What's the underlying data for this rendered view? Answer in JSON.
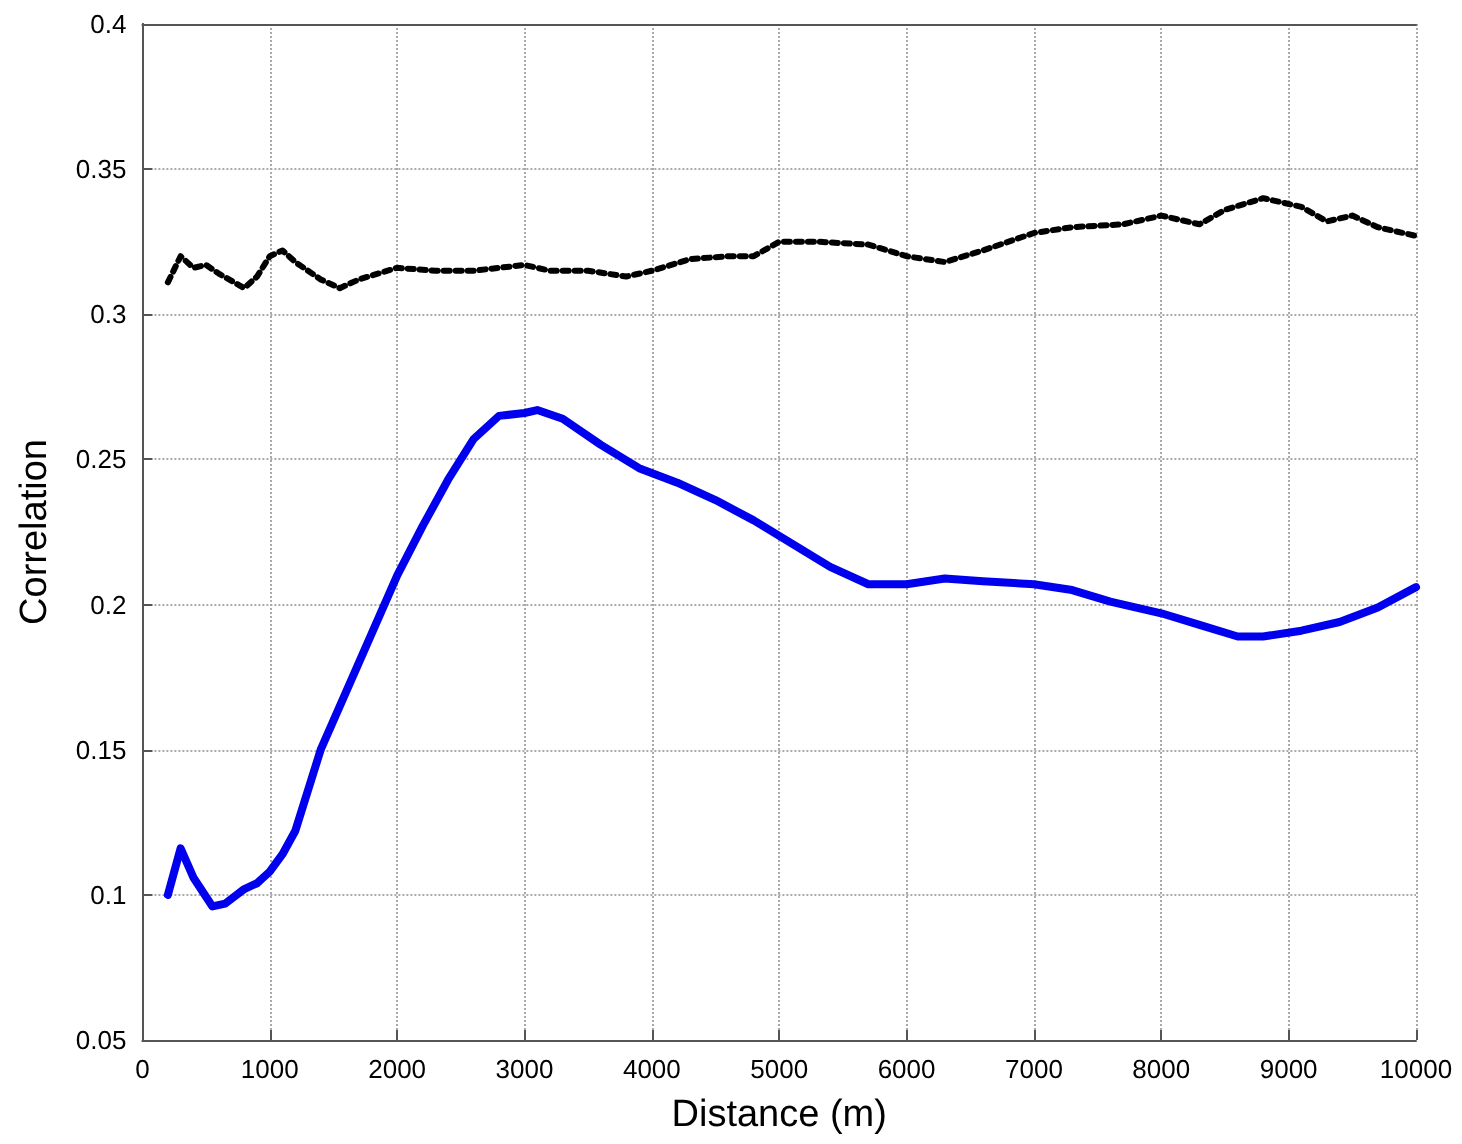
{
  "chart_data": {
    "type": "line",
    "xlabel": "Distance (m)",
    "ylabel": "Correlation",
    "xlim": [
      0,
      10000
    ],
    "xticks": [
      0,
      1000,
      2000,
      3000,
      4000,
      5000,
      6000,
      7000,
      8000,
      9000,
      10000
    ],
    "ylim": [
      0.05,
      0.4
    ],
    "yticks": [
      0.05,
      0.1,
      0.15,
      0.2,
      0.25,
      0.3,
      0.35,
      0.4
    ],
    "grid": true,
    "marker": "none",
    "series": [
      {
        "color": "#0000ee",
        "line_style": "solid",
        "x": [
          200,
          300,
          400,
          550,
          650,
          800,
          900,
          1000,
          1100,
          1200,
          1400,
          1600,
          1800,
          2000,
          2200,
          2400,
          2600,
          2800,
          3000,
          3100,
          3300,
          3600,
          3900,
          4200,
          4500,
          4800,
          5100,
          5400,
          5700,
          6000,
          6300,
          6600,
          7000,
          7300,
          7600,
          8000,
          8300,
          8600,
          8800,
          9100,
          9400,
          9700,
          10000
        ],
        "values": [
          0.1,
          0.116,
          0.106,
          0.096,
          0.097,
          0.102,
          0.104,
          0.108,
          0.114,
          0.122,
          0.15,
          0.17,
          0.19,
          0.21,
          0.227,
          0.243,
          0.257,
          0.265,
          0.266,
          0.267,
          0.264,
          0.255,
          0.247,
          0.242,
          0.236,
          0.229,
          0.221,
          0.213,
          0.207,
          0.207,
          0.209,
          0.208,
          0.207,
          0.205,
          0.201,
          0.197,
          0.193,
          0.189,
          0.189,
          0.191,
          0.194,
          0.199,
          0.206
        ]
      },
      {
        "color": "#000000",
        "line_style": "dotted",
        "x": [
          200,
          300,
          400,
          500,
          600,
          800,
          900,
          1000,
          1100,
          1200,
          1400,
          1550,
          1700,
          2000,
          2300,
          2600,
          3000,
          3200,
          3500,
          3800,
          4000,
          4300,
          4600,
          4800,
          5000,
          5300,
          5700,
          6000,
          6300,
          6600,
          7000,
          7300,
          7700,
          8000,
          8300,
          8500,
          8800,
          9100,
          9300,
          9500,
          9700,
          10000
        ],
        "values": [
          0.311,
          0.32,
          0.316,
          0.317,
          0.314,
          0.309,
          0.313,
          0.32,
          0.322,
          0.318,
          0.312,
          0.309,
          0.312,
          0.316,
          0.315,
          0.315,
          0.317,
          0.315,
          0.315,
          0.313,
          0.315,
          0.319,
          0.32,
          0.32,
          0.325,
          0.325,
          0.324,
          0.32,
          0.318,
          0.322,
          0.328,
          0.33,
          0.331,
          0.334,
          0.331,
          0.336,
          0.34,
          0.337,
          0.332,
          0.334,
          0.33,
          0.327
        ]
      }
    ]
  }
}
